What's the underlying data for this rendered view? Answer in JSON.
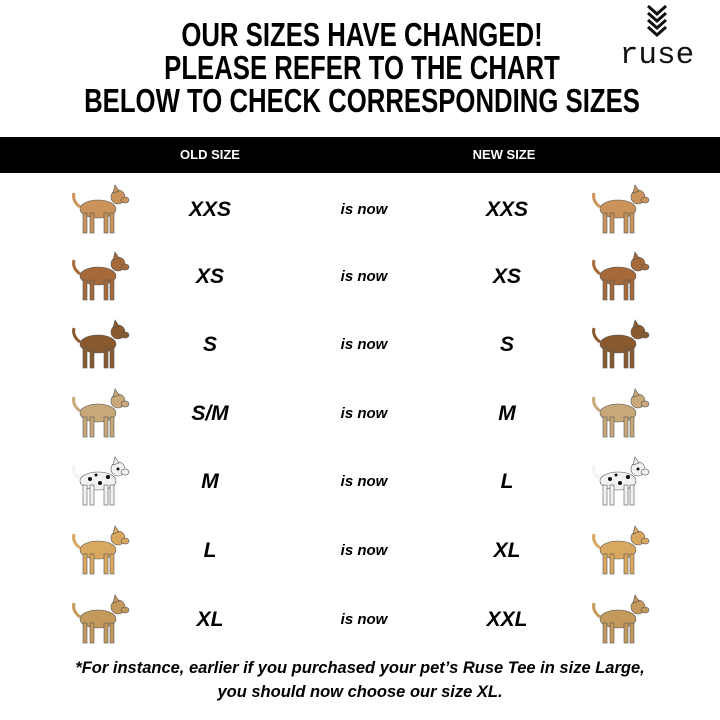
{
  "header": {
    "title_lines": [
      "OUR SIZES HAVE CHANGED!",
      "PLEASE REFER TO THE CHART",
      "BELOW TO CHECK CORRESPONDING SIZES"
    ],
    "logo": "ruse"
  },
  "table": {
    "col_old": "OLD SIZE",
    "col_new": "NEW SIZE",
    "connector": "is now",
    "rows": [
      {
        "breed": "chihuahua",
        "old": "XXS",
        "new": "XXS",
        "color": "#c9935a",
        "spots": false
      },
      {
        "breed": "shih-tzu",
        "old": "XS",
        "new": "XS",
        "color": "#a66a3a",
        "spots": false
      },
      {
        "breed": "beagle",
        "old": "S",
        "new": "S",
        "color": "#8a5a2e",
        "spots": false
      },
      {
        "breed": "pug",
        "old": "S/M",
        "new": "M",
        "color": "#c8a879",
        "spots": false
      },
      {
        "breed": "dalmatian",
        "old": "M",
        "new": "L",
        "color": "#f2f2f2",
        "spots": true
      },
      {
        "breed": "golden-retriever",
        "old": "L",
        "new": "XL",
        "color": "#d9a860",
        "spots": false
      },
      {
        "breed": "great-dane",
        "old": "XL",
        "new": "XXL",
        "color": "#c49a5c",
        "spots": false
      }
    ]
  },
  "footer": {
    "line1": "*For instance, earlier if you purchased your pet’s Ruse Tee in size Large,",
    "line2": "you should now choose our size XL."
  }
}
